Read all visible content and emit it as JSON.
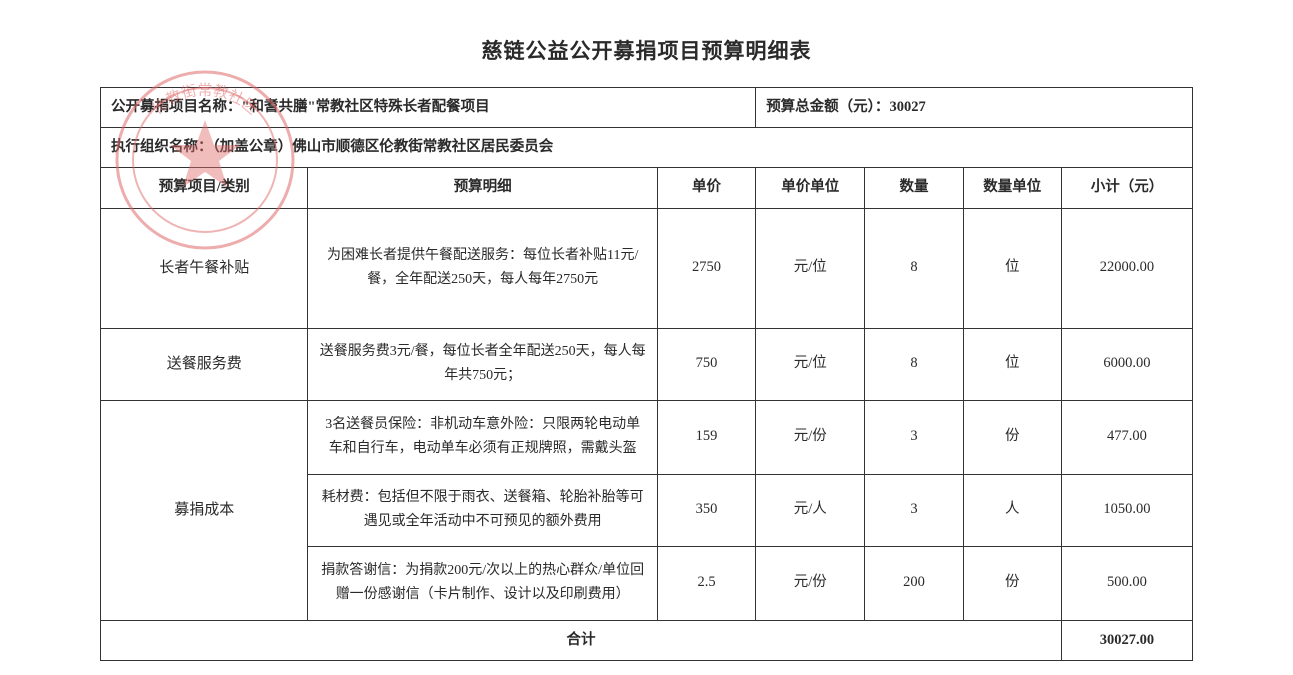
{
  "title": "慈链公益公开募捐项目预算明细表",
  "header": {
    "project_label": "公开募捐项目名称：",
    "project_name": "\"和耆共膳\"常教社区特殊长者配餐项目",
    "total_label": "预算总金额（元）：",
    "total_amount": "30027",
    "org_label": "执行组织名称：（加盖公章）",
    "org_name": "佛山市顺德区伦教街常教社区居民委员会"
  },
  "columns": {
    "category": "预算项目/类别",
    "detail": "预算明细",
    "price": "单价",
    "price_unit": "单价单位",
    "qty": "数量",
    "qty_unit": "数量单位",
    "subtotal": "小计（元）"
  },
  "col_widths": {
    "category": "19%",
    "detail": "32%",
    "price": "9%",
    "price_unit": "10%",
    "qty": "9%",
    "qty_unit": "9%",
    "subtotal": "12%"
  },
  "rows": [
    {
      "category": "长者午餐补贴",
      "detail": "为困难长者提供午餐配送服务：每位长者补贴11元/餐，全年配送250天，每人每年2750元",
      "price": "2750",
      "price_unit": "元/位",
      "qty": "8",
      "qty_unit": "位",
      "subtotal": "22000.00",
      "rowspan": 1,
      "height_class": "tall"
    },
    {
      "category": "送餐服务费",
      "detail": "送餐服务费3元/餐，每位长者全年配送250天，每人每年共750元；",
      "price": "750",
      "price_unit": "元/位",
      "qty": "8",
      "qty_unit": "位",
      "subtotal": "6000.00",
      "rowspan": 1,
      "height_class": "med"
    },
    {
      "category": "募捐成本",
      "detail": "3名送餐员保险：非机动车意外险：只限两轮电动单车和自行车，电动单车必须有正规牌照，需戴头盔",
      "price": "159",
      "price_unit": "元/份",
      "qty": "3",
      "qty_unit": "份",
      "subtotal": "477.00",
      "rowspan": 3,
      "height_class": "med2"
    },
    {
      "detail": "耗材费：包括但不限于雨衣、送餐箱、轮胎补胎等可遇见或全年活动中不可预见的额外费用",
      "price": "350",
      "price_unit": "元/人",
      "qty": "3",
      "qty_unit": "人",
      "subtotal": "1050.00",
      "height_class": "med"
    },
    {
      "detail": "捐款答谢信：为捐款200元/次以上的热心群众/单位回赠一份感谢信（卡片制作、设计以及印刷费用）",
      "price": "2.5",
      "price_unit": "元/份",
      "qty": "200",
      "qty_unit": "份",
      "subtotal": "500.00",
      "height_class": "med2"
    }
  ],
  "total": {
    "label": "合计",
    "value": "30027.00"
  },
  "stamp": {
    "outer_color": "#e06a6a",
    "inner_color_opacity": 0.55,
    "stroke_width": 3
  }
}
